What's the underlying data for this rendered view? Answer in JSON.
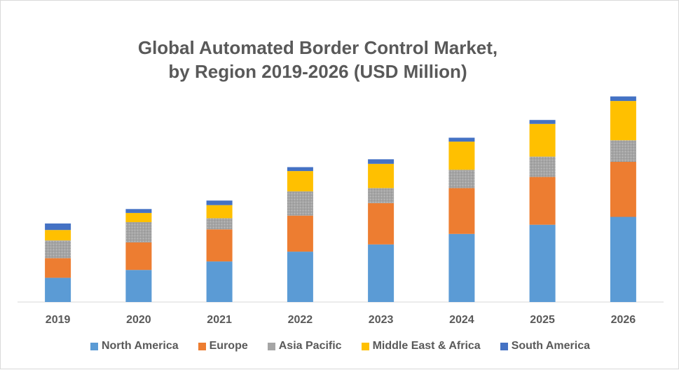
{
  "chart_data": {
    "type": "bar",
    "stacked": true,
    "title": "Global Automated Border Control Market,\nby Region 2019-2026 (USD Million)",
    "categories": [
      "2019",
      "2020",
      "2021",
      "2022",
      "2023",
      "2024",
      "2025",
      "2026"
    ],
    "series": [
      {
        "name": "North America",
        "color": "#5b9bd5",
        "values": [
          37,
          49,
          62,
          77,
          88,
          104,
          118,
          130
        ]
      },
      {
        "name": "Europe",
        "color": "#ed7d31",
        "values": [
          30,
          42,
          49,
          55,
          63,
          70,
          73,
          84
        ]
      },
      {
        "name": "Asia Pacific",
        "color": "#a5a5a5",
        "values": [
          27,
          31,
          17,
          37,
          23,
          28,
          31,
          33
        ]
      },
      {
        "name": "Middle East & Africa",
        "color": "#ffc000",
        "values": [
          16,
          14,
          20,
          31,
          37,
          43,
          50,
          60
        ]
      },
      {
        "name": "South America",
        "color": "#4472c4",
        "values": [
          10,
          6,
          7,
          6,
          7,
          6,
          6,
          7
        ]
      }
    ],
    "ylim": [
      0,
      320
    ],
    "grid": false,
    "legend": "bottom"
  }
}
